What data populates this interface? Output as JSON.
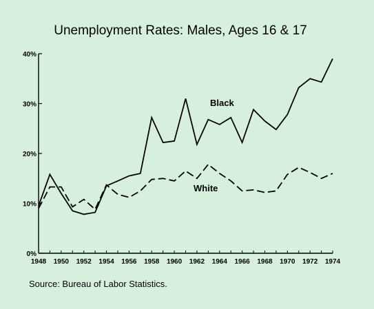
{
  "chart_data": {
    "type": "line",
    "title": "Unemployment Rates: Males, Ages 16 & 17",
    "xlabel": "",
    "ylabel": "",
    "x": [
      1948,
      1949,
      1950,
      1951,
      1952,
      1953,
      1954,
      1955,
      1956,
      1957,
      1958,
      1959,
      1960,
      1961,
      1962,
      1963,
      1964,
      1965,
      1966,
      1967,
      1968,
      1969,
      1970,
      1971,
      1972,
      1973,
      1974
    ],
    "x_tick_labels": [
      "1948",
      "1950",
      "1952",
      "1954",
      "1956",
      "1958",
      "1960",
      "1962",
      "1964",
      "1966",
      "1968",
      "1970",
      "1972",
      "1974"
    ],
    "y_tick_labels": [
      "0%",
      "10%",
      "20%",
      "30%",
      "40%"
    ],
    "y_ticks": [
      0,
      10,
      20,
      30,
      40
    ],
    "xlim": [
      1948,
      1974
    ],
    "ylim": [
      0,
      40
    ],
    "grid": false,
    "legend": "none",
    "series": [
      {
        "name": "Black",
        "style": "solid",
        "values": [
          9.5,
          15.8,
          12.0,
          8.5,
          7.8,
          8.2,
          13.5,
          14.5,
          15.5,
          16.0,
          27.2,
          22.2,
          22.5,
          31.0,
          21.8,
          26.8,
          25.8,
          27.2,
          22.2,
          28.8,
          26.5,
          24.8,
          27.8,
          33.2,
          35.0,
          34.3,
          39.0
        ]
      },
      {
        "name": "White",
        "style": "dashed",
        "values": [
          9.0,
          13.3,
          13.3,
          9.3,
          10.8,
          8.8,
          13.7,
          11.8,
          11.2,
          12.5,
          14.8,
          15.0,
          14.5,
          16.5,
          15.0,
          17.8,
          16.0,
          14.5,
          12.5,
          12.7,
          12.2,
          12.5,
          15.8,
          17.2,
          16.2,
          15.0,
          16.0
        ]
      }
    ],
    "annotations": [
      "Black",
      "White"
    ]
  },
  "footer": {
    "source": "Source: Bureau of Labor Statistics."
  },
  "colors": {
    "background": "#d7f0de",
    "ink": "#000000"
  }
}
